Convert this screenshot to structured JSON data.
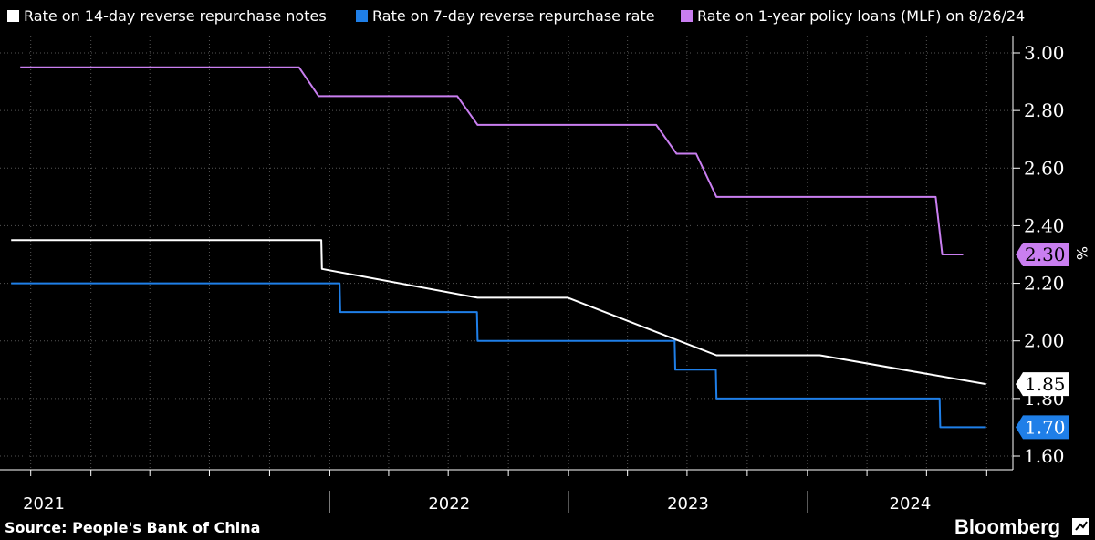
{
  "chart_data": {
    "type": "line",
    "ylabel": "%",
    "ylim": [
      1.6,
      3.0
    ],
    "y_ticks": [
      "3.00",
      "2.80",
      "2.60",
      "2.40",
      "2.20",
      "2.00",
      "1.80",
      "1.60"
    ],
    "x_year_labels": [
      "2021",
      "2022",
      "2023",
      "2024"
    ],
    "grid": true,
    "legend_position": "top",
    "series": [
      {
        "name": "Rate on 14-day reverse repurchase notes",
        "color": "#ffffff",
        "last_value_label": "1.85",
        "points": [
          [
            "2020-09-01",
            2.35
          ],
          [
            "2021-12-19",
            2.35
          ],
          [
            "2021-12-20",
            2.25
          ],
          [
            "2022-08-15",
            2.15
          ],
          [
            "2022-12-31",
            2.15
          ],
          [
            "2023-08-15",
            1.95
          ],
          [
            "2024-01-20",
            1.95
          ],
          [
            "2024-09-30",
            1.85
          ]
        ]
      },
      {
        "name": "Rate on 7-day reverse repurchase rate",
        "color": "#1f7fe8",
        "last_value_label": "1.70",
        "points": [
          [
            "2020-09-01",
            2.2
          ],
          [
            "2022-01-16",
            2.2
          ],
          [
            "2022-01-17",
            2.1
          ],
          [
            "2022-08-14",
            2.1
          ],
          [
            "2022-08-15",
            2.0
          ],
          [
            "2023-06-12",
            2.0
          ],
          [
            "2023-06-13",
            1.9
          ],
          [
            "2023-08-14",
            1.9
          ],
          [
            "2023-08-15",
            1.8
          ],
          [
            "2024-07-21",
            1.8
          ],
          [
            "2024-07-22",
            1.7
          ],
          [
            "2024-09-30",
            1.7
          ]
        ]
      },
      {
        "name": "Rate on 1-year policy loans (MLF) on 8/26/24",
        "color": "#c97ef0",
        "last_value_label": "2.30",
        "points": [
          [
            "2020-09-15",
            2.95
          ],
          [
            "2021-11-15",
            2.95
          ],
          [
            "2021-12-15",
            2.85
          ],
          [
            "2022-07-15",
            2.85
          ],
          [
            "2022-08-15",
            2.75
          ],
          [
            "2023-05-15",
            2.75
          ],
          [
            "2023-06-15",
            2.65
          ],
          [
            "2023-07-15",
            2.65
          ],
          [
            "2023-08-15",
            2.5
          ],
          [
            "2024-07-15",
            2.5
          ],
          [
            "2024-07-25",
            2.3
          ],
          [
            "2024-08-26",
            2.3
          ]
        ]
      }
    ]
  },
  "footer": {
    "source": "Source: People's Bank of China",
    "brand": "Bloomberg"
  }
}
